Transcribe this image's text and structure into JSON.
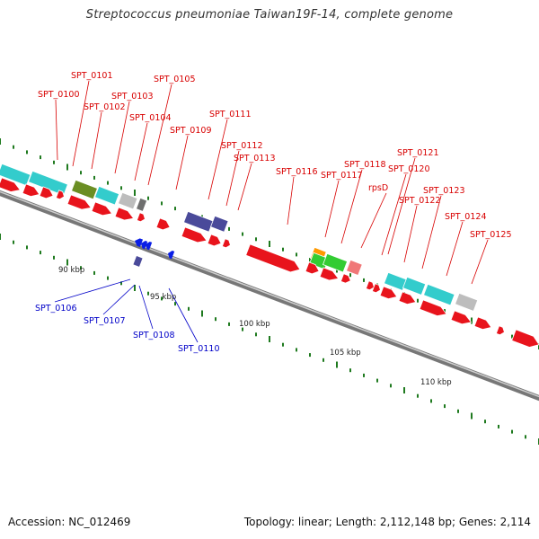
{
  "title": "Streptococcus pneumoniae Taiwan19F-14, complete genome",
  "footer": {
    "accession": "Accession: NC_012469",
    "summary": "Topology: linear; Length: 2,112,148 bp; Genes: 2,114"
  },
  "colors": {
    "forward_cds": "#e8141c",
    "reverse_cds": "#0a1ee6",
    "gene_cyan": "#33cccc",
    "gene_olive": "#6b8e23",
    "gene_gray": "#bdbdbd",
    "gene_darkgray": "#6f6f6f",
    "gene_slateblue": "#4a4a9a",
    "gene_green": "#33cc33",
    "gene_orange": "#ff9900",
    "gene_pink": "#f07878",
    "backbone": "#8c8c8c",
    "tick": "#1f7a1f",
    "forward_label": "#d80000",
    "reverse_label": "#0000c8"
  },
  "scale_labels": [
    "90 kbp",
    "95 kbp",
    "100 kbp",
    "105 kbp",
    "110 kbp"
  ],
  "forward_labels": [
    "SPT_0100",
    "SPT_0101",
    "SPT_0102",
    "SPT_0103",
    "SPT_0104",
    "SPT_0105",
    "SPT_0109",
    "SPT_0111",
    "SPT_0112",
    "SPT_0113",
    "SPT_0116",
    "SPT_0117",
    "SPT_0118",
    "rpsD",
    "SPT_0120",
    "SPT_0121",
    "SPT_0122",
    "SPT_0123",
    "SPT_0124",
    "SPT_0125"
  ],
  "reverse_labels": [
    "SPT_0106",
    "SPT_0107",
    "SPT_0108",
    "SPT_0110"
  ]
}
